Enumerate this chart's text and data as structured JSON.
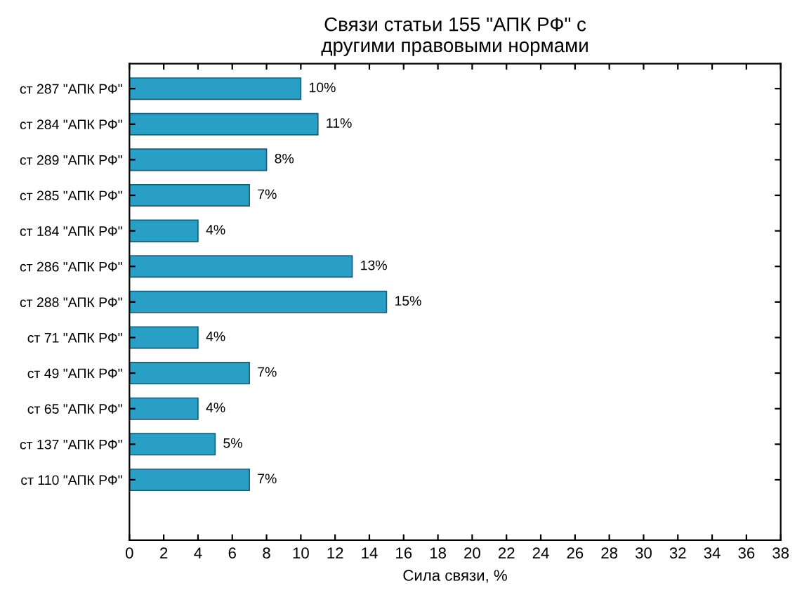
{
  "chart_data": {
    "type": "bar",
    "orientation": "horizontal",
    "title": "Связи статьи 155 \"АПК РФ\" с\nдругими правовыми нормами",
    "xlabel": "Сила связи, %",
    "categories": [
      "ст 287 \"АПК РФ\"",
      "ст 284 \"АПК РФ\"",
      "ст 289 \"АПК РФ\"",
      "ст 285 \"АПК РФ\"",
      "ст 184 \"АПК РФ\"",
      "ст 286 \"АПК РФ\"",
      "ст 288 \"АПК РФ\"",
      "ст 71 \"АПК РФ\"",
      "ст 49 \"АПК РФ\"",
      "ст 65 \"АПК РФ\"",
      "ст 137 \"АПК РФ\"",
      "ст 110 \"АПК РФ\""
    ],
    "values": [
      10,
      11,
      8,
      7,
      4,
      13,
      15,
      4,
      7,
      4,
      5,
      7
    ],
    "value_labels": [
      "10%",
      "11%",
      "8%",
      "7%",
      "4%",
      "13%",
      "15%",
      "4%",
      "7%",
      "4%",
      "5%",
      "7%"
    ],
    "color": "#2a9fc6",
    "xlim": [
      0,
      38
    ],
    "xticks": [
      0,
      2,
      4,
      6,
      8,
      10,
      12,
      14,
      16,
      18,
      20,
      22,
      24,
      26,
      28,
      30,
      32,
      34,
      36,
      38
    ],
    "grid": false
  }
}
